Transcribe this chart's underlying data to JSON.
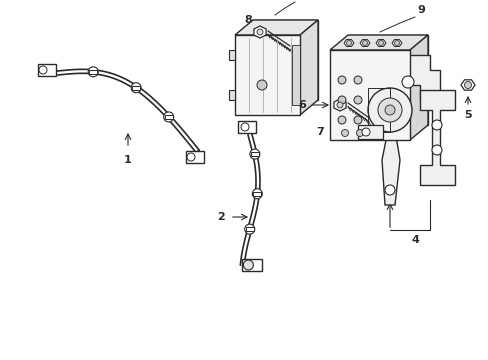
{
  "background_color": "#ffffff",
  "line_color": "#2a2a2a",
  "figsize": [
    4.89,
    3.6
  ],
  "dpi": 100,
  "xlim": [
    0,
    489
  ],
  "ylim": [
    0,
    360
  ]
}
